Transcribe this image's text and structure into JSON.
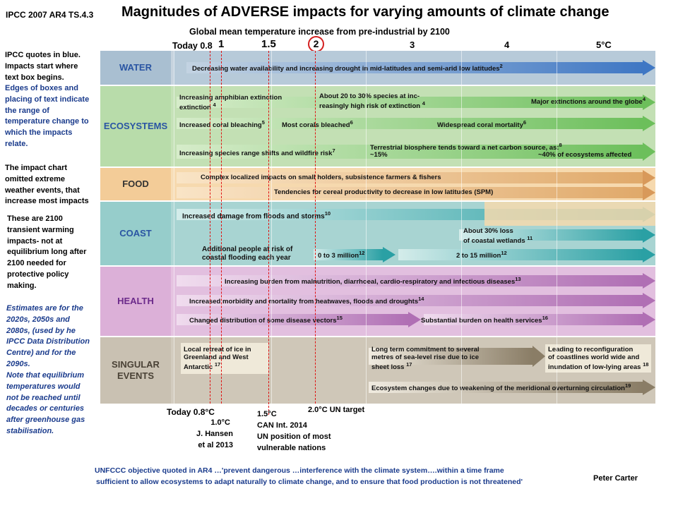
{
  "header": {
    "reference": "IPCC 2007 AR4 TS.4.3",
    "title": "Magnitudes of ADVERSE impacts  for varying amounts of climate change",
    "subtitle": "Global mean temperature increase from pre-industrial by 2100",
    "today_label": "Today 0.8",
    "ticks": [
      "1",
      "1.5",
      "2",
      "3",
      "4",
      "5°C"
    ]
  },
  "side_notes": {
    "note1": [
      "IPCC quotes in blue.",
      "Impacts start where",
      "text box begins."
    ],
    "note2": [
      "Edges of boxes and",
      "placing of text indicate",
      "the range of",
      "temperature change to",
      "which the impacts",
      "relate."
    ],
    "note3": [
      "The impact chart",
      "omitted extreme",
      "weather events, that",
      "increase most impacts"
    ],
    "note4": [
      "These are 2100",
      "transient  warming",
      "impacts- not at",
      "equilibrium long after",
      "2100 needed for",
      "protective policy",
      "making."
    ],
    "note5": [
      "Estimates  are for the",
      "2020s, 2050s and",
      "2080s, (used by he",
      "IPCC Data Distribution",
      "Centre) and for the",
      "2090s."
    ],
    "note6": [
      "Note that equilibrium",
      "temperatures would",
      "not be reached until",
      "decades  or centuries",
      "after greenhouse gas",
      "stabilisation."
    ]
  },
  "sectors": {
    "water": "WATER",
    "ecosystems": "ECOSYSTEMS",
    "food": "FOOD",
    "coast": "COAST",
    "health": "HEALTH",
    "singular": "SINGULAR EVENTS"
  },
  "impacts": {
    "water1": "Decreasing water availability and increasing drought in mid-latitudes and semi-arid low latitudes",
    "water1_ref": "2",
    "eco1": "Increasing amphibian extinction",
    "eco1_ref": "4",
    "eco2": "About 20 to 30% species at increasingly high risk of extinction",
    "eco2_ref": "4",
    "eco3": "Major extinctions around the globe",
    "eco3_ref": "4",
    "eco4": "Increased coral bleaching",
    "eco4_ref": "5",
    "eco5": "Most corals bleached",
    "eco5_ref": "6",
    "eco6": "Widespread coral mortality",
    "eco6_ref": "6",
    "eco7": "Increasing species range shifts and wildfire risk",
    "eco7_ref": "7",
    "eco8": "Terrestrial biosphere tends toward a net carbon source, as:",
    "eco8_ref": "8",
    "eco8a": "~15%",
    "eco8b": "~40% of ecosystems affected",
    "food1": "Complex localized impacts on small holders, subsistence  farmers & fishers",
    "food2": "Tendencies for cereal productivity to decrease in low latitudes (SPM)",
    "coast1": "Increased damage from floods and storms",
    "coast1_ref": "10",
    "coast2": "About 30% loss of coastal wetlands",
    "coast2_ref": "11",
    "coast3": "Additional people at risk of coastal flooding each year",
    "coast4": "0 to 3 million",
    "coast4_ref": "12",
    "coast5": "2 to 15 million",
    "coast5_ref": "12",
    "health1": "Increasing burden from malnutrition, diarrhoeal, cardio-respiratory and infectious diseases",
    "health1_ref": "13",
    "health2": "Increased morbidity and mortality from heatwaves, floods and droughts",
    "health2_ref": "14",
    "health3": "Changed distribution of some disease vectors",
    "health3_ref": "15",
    "health4": "Substantial burden on health services",
    "health4_ref": "16",
    "sing1": "Local retreat of ice in Greenland and West Antarctic",
    "sing1_ref": "17",
    "sing2": "Long term commitment to several metres of sea-level rise due to ice sheet loss",
    "sing2_ref": "17",
    "sing3": "Leading to reconfiguration of coastlines world wide and inundation of low-lying areas",
    "sing3_ref": "18",
    "sing4": "Ecosystem changes due to weakening of the meridional overturning circulation",
    "sing4_ref": "19"
  },
  "bottom": {
    "today": "Today 0.8°C",
    "hansen": [
      "1.0°C",
      "J. Hansen",
      "et al 2013"
    ],
    "can": [
      "1.5°C",
      "CAN Int. 2014",
      "UN position of most",
      "vulnerable nations"
    ],
    "target": "2.0°C UN target",
    "quote1": "UNFCCC objective quoted in AR4 …'prevent dangerous …interference with the climate system….within a time frame",
    "quote2": "sufficient to allow  ecosystems to adapt naturally to climate change, and to ensure that food production  is not threatened'",
    "author": "Peter Carter"
  },
  "colors": {
    "water": "#a9bfd1",
    "water_arrow": "#3f77c4",
    "eco": "#b8dcaa",
    "eco_arrow": "#6cbf5b",
    "food": "#f3cc98",
    "food_arrow": "#e0a96a",
    "coast": "#96cdcb",
    "coast_arrow": "#2aa0a4",
    "health": "#dcb0d8",
    "health_arrow": "#b06fb4",
    "singular": "#c9c1b2",
    "singular_arrow": "#8a7d66",
    "red_line": "#e01010"
  }
}
